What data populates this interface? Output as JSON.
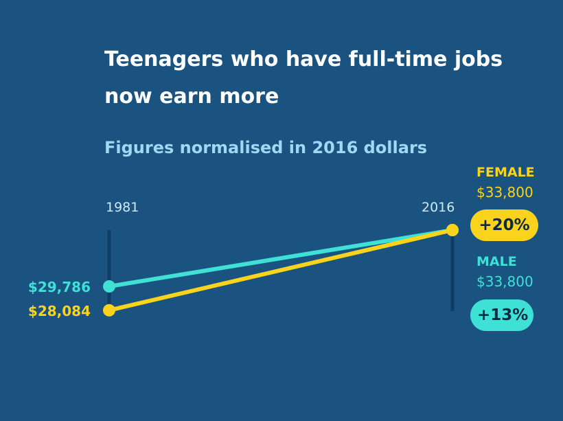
{
  "chart_data": {
    "type": "line",
    "title": "Teenagers who have full-time jobs now earn more",
    "subtitle": "Figures normalised in 2016 dollars",
    "x": [
      1981,
      2016
    ],
    "x_tick_labels": [
      "1981",
      "2016"
    ],
    "grid": false,
    "series": [
      {
        "name": "MALE",
        "values": [
          29786,
          33800
        ],
        "start_label": "$29,786",
        "end_label": "$33,800",
        "change": "+13%",
        "color": "#3fe0d6"
      },
      {
        "name": "FEMALE",
        "values": [
          28084,
          33800
        ],
        "start_label": "$28,084",
        "end_label": "$33,800",
        "change": "+20%",
        "color": "#f9d31c"
      }
    ]
  },
  "colors": {
    "background": "#1a5380",
    "axis_line": "#0e3c63",
    "badge_text": "#102a42"
  }
}
